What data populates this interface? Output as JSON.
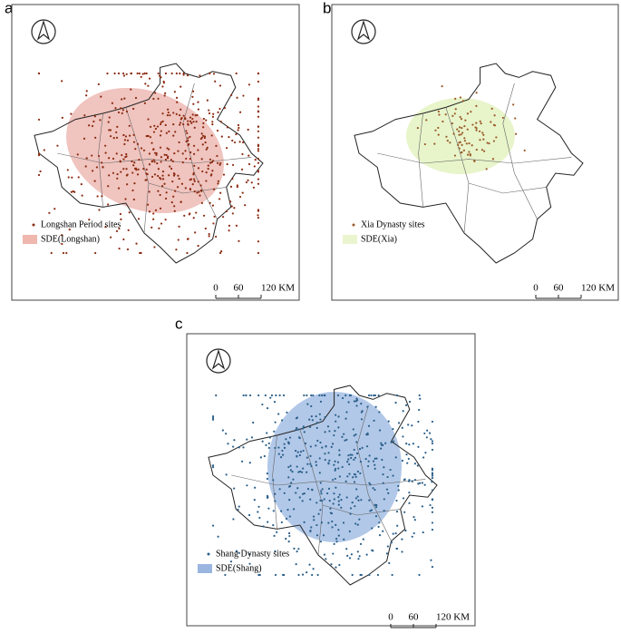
{
  "panels": [
    {
      "letter": "a",
      "points_label": "Longshan Period sites",
      "ellipse_label": "SDE(Longshan)",
      "scale": [
        "0",
        "60",
        "120 KM"
      ]
    },
    {
      "letter": "b",
      "points_label": "Xia Dynasty sites",
      "ellipse_label": "SDE(Xia)",
      "scale": [
        "0",
        "60",
        "120 KM"
      ]
    },
    {
      "letter": "c",
      "points_label": "Shang Dynasty sites",
      "ellipse_label": "SDE(Shang)",
      "scale": [
        "0",
        "60",
        "120 KM"
      ]
    }
  ]
}
